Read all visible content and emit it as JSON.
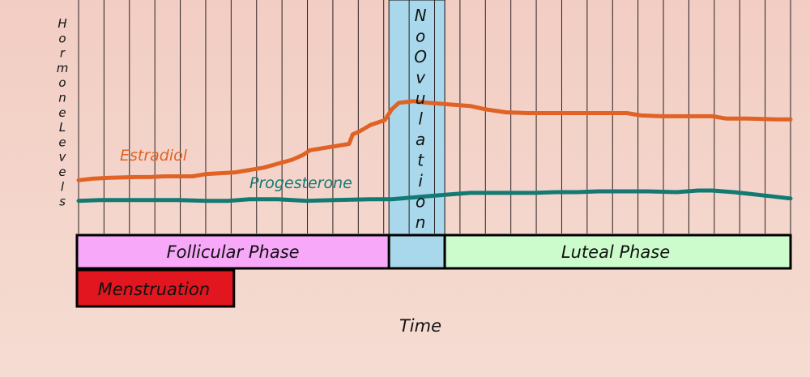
{
  "chart_data": {
    "type": "line",
    "title": "",
    "xlabel": "Time",
    "ylabel": "Hormone Levels",
    "ovulation_label": "No Ovulation",
    "colors": {
      "estradiol": "#e06225",
      "progesterone": "#137a73",
      "follicular": "#f7a8f8",
      "ovulation": "#a9d8ec",
      "luteal": "#ccfccc",
      "menstruation": "#e1161e",
      "grid": "#2a2020"
    },
    "series": [
      {
        "name": "Estradiol",
        "color": "#e06225",
        "points": [
          [
            0,
            0.27
          ],
          [
            0.02,
            0.28
          ],
          [
            0.04,
            0.285
          ],
          [
            0.08,
            0.29
          ],
          [
            0.1,
            0.29
          ],
          [
            0.12,
            0.295
          ],
          [
            0.14,
            0.295
          ],
          [
            0.16,
            0.295
          ],
          [
            0.18,
            0.31
          ],
          [
            0.2,
            0.315
          ],
          [
            0.22,
            0.32
          ],
          [
            0.24,
            0.335
          ],
          [
            0.26,
            0.35
          ],
          [
            0.28,
            0.375
          ],
          [
            0.3,
            0.4
          ],
          [
            0.315,
            0.43
          ],
          [
            0.325,
            0.46
          ],
          [
            0.38,
            0.5
          ],
          [
            0.385,
            0.56
          ],
          [
            0.395,
            0.58
          ],
          [
            0.41,
            0.62
          ],
          [
            0.43,
            0.65
          ],
          [
            0.44,
            0.72
          ],
          [
            0.45,
            0.76
          ],
          [
            0.47,
            0.77
          ],
          [
            0.49,
            0.76
          ],
          [
            0.52,
            0.75
          ],
          [
            0.55,
            0.74
          ],
          [
            0.57,
            0.72
          ],
          [
            0.6,
            0.7
          ],
          [
            0.63,
            0.695
          ],
          [
            0.7,
            0.695
          ],
          [
            0.77,
            0.695
          ],
          [
            0.79,
            0.68
          ],
          [
            0.82,
            0.675
          ],
          [
            0.89,
            0.675
          ],
          [
            0.91,
            0.66
          ],
          [
            0.94,
            0.66
          ],
          [
            0.98,
            0.655
          ],
          [
            1.0,
            0.655
          ]
        ]
      },
      {
        "name": "Progesterone",
        "color": "#137a73",
        "points": [
          [
            0,
            0.14
          ],
          [
            0.03,
            0.145
          ],
          [
            0.05,
            0.145
          ],
          [
            0.11,
            0.145
          ],
          [
            0.14,
            0.145
          ],
          [
            0.18,
            0.14
          ],
          [
            0.21,
            0.14
          ],
          [
            0.24,
            0.15
          ],
          [
            0.28,
            0.15
          ],
          [
            0.32,
            0.14
          ],
          [
            0.36,
            0.145
          ],
          [
            0.41,
            0.15
          ],
          [
            0.44,
            0.15
          ],
          [
            0.48,
            0.165
          ],
          [
            0.52,
            0.18
          ],
          [
            0.55,
            0.19
          ],
          [
            0.6,
            0.19
          ],
          [
            0.64,
            0.19
          ],
          [
            0.67,
            0.195
          ],
          [
            0.7,
            0.195
          ],
          [
            0.73,
            0.2
          ],
          [
            0.76,
            0.2
          ],
          [
            0.8,
            0.2
          ],
          [
            0.84,
            0.195
          ],
          [
            0.87,
            0.205
          ],
          [
            0.89,
            0.205
          ],
          [
            0.92,
            0.195
          ],
          [
            0.94,
            0.185
          ],
          [
            0.97,
            0.17
          ],
          [
            1.0,
            0.155
          ]
        ]
      }
    ],
    "phases": [
      {
        "label": "Follicular Phase",
        "start": 0,
        "end": 0.445
      },
      {
        "label": "",
        "start": 0.445,
        "end": 0.52
      },
      {
        "label": "Luteal Phase",
        "start": 0.52,
        "end": 1.0
      }
    ],
    "menstruation": {
      "label": "Menstruation",
      "start": 0,
      "end": 0.225
    },
    "ovulation_window": {
      "start": 0.445,
      "end": 0.52
    }
  }
}
